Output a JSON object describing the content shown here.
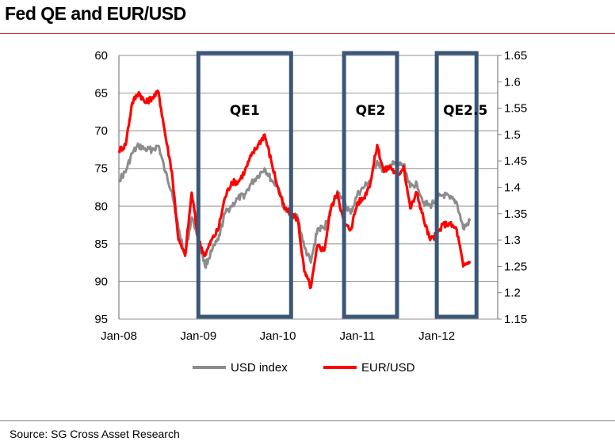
{
  "title": "Fed QE and EUR/USD",
  "source": "Source: SG Cross Asset Research",
  "colors": {
    "usd": "#8c8c8c",
    "eur": "#ff0000",
    "box": "#3a5777",
    "rule": "#d31f2a",
    "grid": "#a6a6a6"
  },
  "chart_data": {
    "type": "line",
    "x_ticks": [
      "Jan-08",
      "Jan-09",
      "Jan-10",
      "Jan-11",
      "Jan-12"
    ],
    "left_axis": {
      "ticks": [
        "60",
        "65",
        "70",
        "75",
        "80",
        "85",
        "90",
        "95"
      ],
      "range": [
        95,
        60
      ],
      "inverted": true
    },
    "right_axis": {
      "ticks": [
        "1.65",
        "1.6",
        "1.55",
        "1.5",
        "1.45",
        "1.4",
        "1.35",
        "1.3",
        "1.25",
        "1.2",
        "1.15"
      ],
      "range": [
        1.15,
        1.65
      ]
    },
    "grid": true,
    "legend_position": "bottom",
    "series": [
      {
        "name": "USD index",
        "axis": "left",
        "color": "#8c8c8c",
        "points": [
          [
            "2008-01",
            76.5
          ],
          [
            "2008-02",
            75.5
          ],
          [
            "2008-03",
            73.0
          ],
          [
            "2008-04",
            72.0
          ],
          [
            "2008-05",
            72.5
          ],
          [
            "2008-06",
            72.5
          ],
          [
            "2008-07",
            72.0
          ],
          [
            "2008-08",
            75.5
          ],
          [
            "2008-09",
            78.0
          ],
          [
            "2008-10",
            83.0
          ],
          [
            "2008-11",
            86.5
          ],
          [
            "2008-12",
            81.5
          ],
          [
            "2009-01",
            84.0
          ],
          [
            "2009-02",
            88.0
          ],
          [
            "2009-03",
            86.0
          ],
          [
            "2009-04",
            84.5
          ],
          [
            "2009-05",
            81.0
          ],
          [
            "2009-06",
            80.0
          ],
          [
            "2009-07",
            79.0
          ],
          [
            "2009-08",
            78.5
          ],
          [
            "2009-09",
            77.0
          ],
          [
            "2009-10",
            76.0
          ],
          [
            "2009-11",
            75.0
          ],
          [
            "2009-12",
            76.5
          ],
          [
            "2010-01",
            77.5
          ],
          [
            "2010-02",
            80.5
          ],
          [
            "2010-03",
            81.0
          ],
          [
            "2010-04",
            81.5
          ],
          [
            "2010-05",
            85.5
          ],
          [
            "2010-06",
            87.5
          ],
          [
            "2010-07",
            83.0
          ],
          [
            "2010-08",
            83.0
          ],
          [
            "2010-09",
            80.5
          ],
          [
            "2010-10",
            78.0
          ],
          [
            "2010-11",
            79.5
          ],
          [
            "2010-12",
            81.0
          ],
          [
            "2011-01",
            78.5
          ],
          [
            "2011-02",
            77.5
          ],
          [
            "2011-03",
            76.5
          ],
          [
            "2011-04",
            74.0
          ],
          [
            "2011-05",
            75.5
          ],
          [
            "2011-06",
            74.5
          ],
          [
            "2011-07",
            74.5
          ],
          [
            "2011-08",
            74.5
          ],
          [
            "2011-09",
            77.5
          ],
          [
            "2011-10",
            77.0
          ],
          [
            "2011-11",
            79.5
          ],
          [
            "2011-12",
            80.0
          ],
          [
            "2012-01",
            79.0
          ],
          [
            "2012-02",
            78.5
          ],
          [
            "2012-03",
            79.0
          ],
          [
            "2012-04",
            79.5
          ],
          [
            "2012-05",
            83.0
          ],
          [
            "2012-06",
            82.0
          ]
        ]
      },
      {
        "name": "EUR/USD",
        "axis": "right",
        "color": "#ff0000",
        "points": [
          [
            "2008-01",
            1.47
          ],
          [
            "2008-02",
            1.48
          ],
          [
            "2008-03",
            1.56
          ],
          [
            "2008-04",
            1.58
          ],
          [
            "2008-05",
            1.56
          ],
          [
            "2008-06",
            1.57
          ],
          [
            "2008-07",
            1.58
          ],
          [
            "2008-08",
            1.5
          ],
          [
            "2008-09",
            1.43
          ],
          [
            "2008-10",
            1.3
          ],
          [
            "2008-11",
            1.27
          ],
          [
            "2008-12",
            1.39
          ],
          [
            "2009-01",
            1.3
          ],
          [
            "2009-02",
            1.27
          ],
          [
            "2009-03",
            1.3
          ],
          [
            "2009-04",
            1.32
          ],
          [
            "2009-05",
            1.38
          ],
          [
            "2009-06",
            1.41
          ],
          [
            "2009-07",
            1.41
          ],
          [
            "2009-08",
            1.43
          ],
          [
            "2009-09",
            1.46
          ],
          [
            "2009-10",
            1.48
          ],
          [
            "2009-11",
            1.5
          ],
          [
            "2009-12",
            1.45
          ],
          [
            "2010-01",
            1.4
          ],
          [
            "2010-02",
            1.36
          ],
          [
            "2010-03",
            1.35
          ],
          [
            "2010-04",
            1.34
          ],
          [
            "2010-05",
            1.24
          ],
          [
            "2010-06",
            1.21
          ],
          [
            "2010-07",
            1.29
          ],
          [
            "2010-08",
            1.28
          ],
          [
            "2010-09",
            1.36
          ],
          [
            "2010-10",
            1.39
          ],
          [
            "2010-11",
            1.33
          ],
          [
            "2010-12",
            1.32
          ],
          [
            "2011-01",
            1.37
          ],
          [
            "2011-02",
            1.38
          ],
          [
            "2011-03",
            1.41
          ],
          [
            "2011-04",
            1.48
          ],
          [
            "2011-05",
            1.43
          ],
          [
            "2011-06",
            1.44
          ],
          [
            "2011-07",
            1.42
          ],
          [
            "2011-08",
            1.44
          ],
          [
            "2011-09",
            1.36
          ],
          [
            "2011-10",
            1.39
          ],
          [
            "2011-11",
            1.34
          ],
          [
            "2011-12",
            1.3
          ],
          [
            "2012-01",
            1.31
          ],
          [
            "2012-02",
            1.33
          ],
          [
            "2012-03",
            1.33
          ],
          [
            "2012-04",
            1.32
          ],
          [
            "2012-05",
            1.25
          ],
          [
            "2012-06",
            1.26
          ]
        ]
      }
    ],
    "annotations": [
      {
        "label": "QE1",
        "start": "2009-01",
        "end": "2010-03"
      },
      {
        "label": "QE2",
        "start": "2010-11",
        "end": "2011-07"
      },
      {
        "label": "QE2.5",
        "start": "2012-01",
        "end": "2012-07"
      }
    ]
  }
}
